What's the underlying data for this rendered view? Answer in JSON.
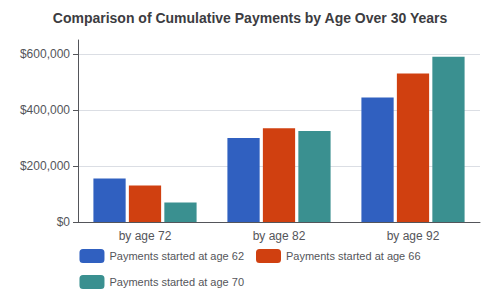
{
  "chart_data": {
    "type": "bar",
    "title": "Comparison of Cumulative Payments by Age Over 30 Years",
    "categories": [
      "by age 72",
      "by age 82",
      "by age 92"
    ],
    "series": [
      {
        "name": "Payments started at age 62",
        "color": "#3060C0",
        "values": [
          155000,
          300000,
          445000
        ]
      },
      {
        "name": "Payments started at age 66",
        "color": "#D04010",
        "values": [
          130000,
          335000,
          530000
        ]
      },
      {
        "name": "Payments started at age 70",
        "color": "#3A9090",
        "values": [
          70000,
          325000,
          590000
        ]
      }
    ],
    "ylim": [
      0,
      650000
    ],
    "yticks": [
      {
        "value": 0,
        "label": "$0"
      },
      {
        "value": 200000,
        "label": "$200,000"
      },
      {
        "value": 400000,
        "label": "$400,000"
      },
      {
        "value": 600000,
        "label": "$600,000"
      }
    ],
    "grid": true,
    "legend": "bottom"
  }
}
